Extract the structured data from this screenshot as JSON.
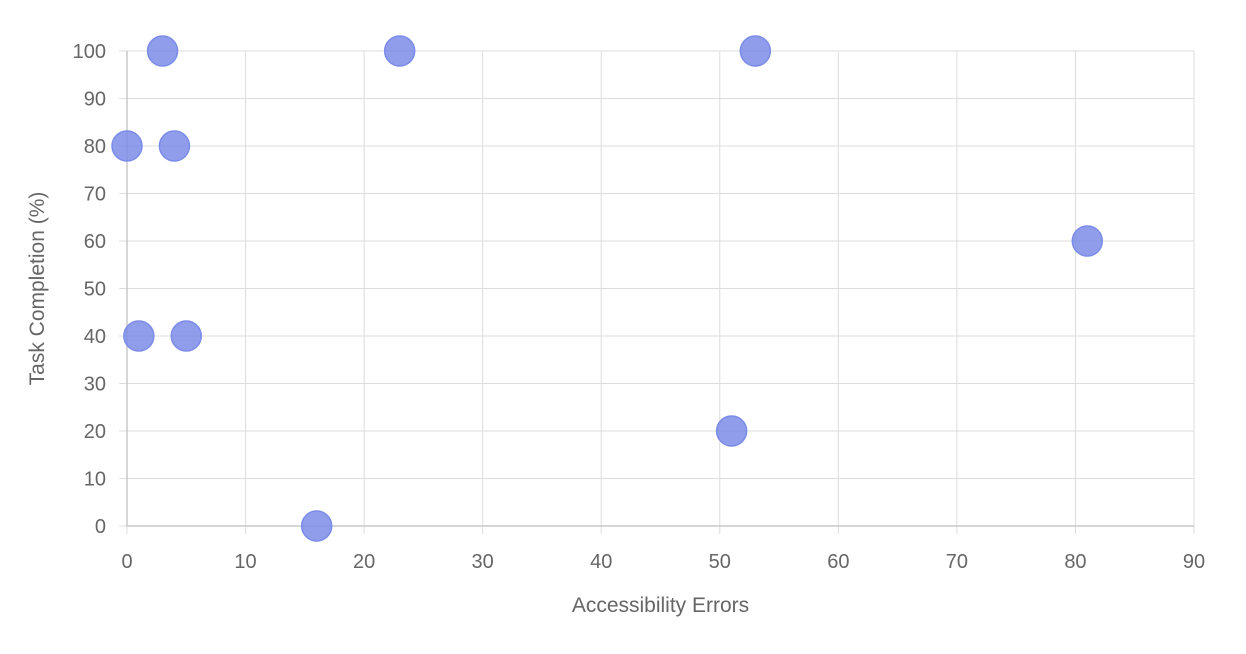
{
  "chart_data": {
    "type": "scatter",
    "title": "",
    "xlabel": "Accessibility Errors",
    "ylabel": "Task Completion (%)",
    "xlim": [
      0,
      90
    ],
    "ylim": [
      0,
      100
    ],
    "xticks": [
      0,
      10,
      20,
      30,
      40,
      50,
      60,
      70,
      80,
      90
    ],
    "yticks": [
      0,
      10,
      20,
      30,
      40,
      50,
      60,
      70,
      80,
      90,
      100
    ],
    "grid": true,
    "legend": "none",
    "point_color": "#7b8ce8",
    "points": [
      {
        "x": 3,
        "y": 100
      },
      {
        "x": 23,
        "y": 100
      },
      {
        "x": 53,
        "y": 100
      },
      {
        "x": 0,
        "y": 80
      },
      {
        "x": 4,
        "y": 80
      },
      {
        "x": 81,
        "y": 60
      },
      {
        "x": 1,
        "y": 40
      },
      {
        "x": 5,
        "y": 40
      },
      {
        "x": 51,
        "y": 20
      },
      {
        "x": 16,
        "y": 0
      }
    ]
  }
}
